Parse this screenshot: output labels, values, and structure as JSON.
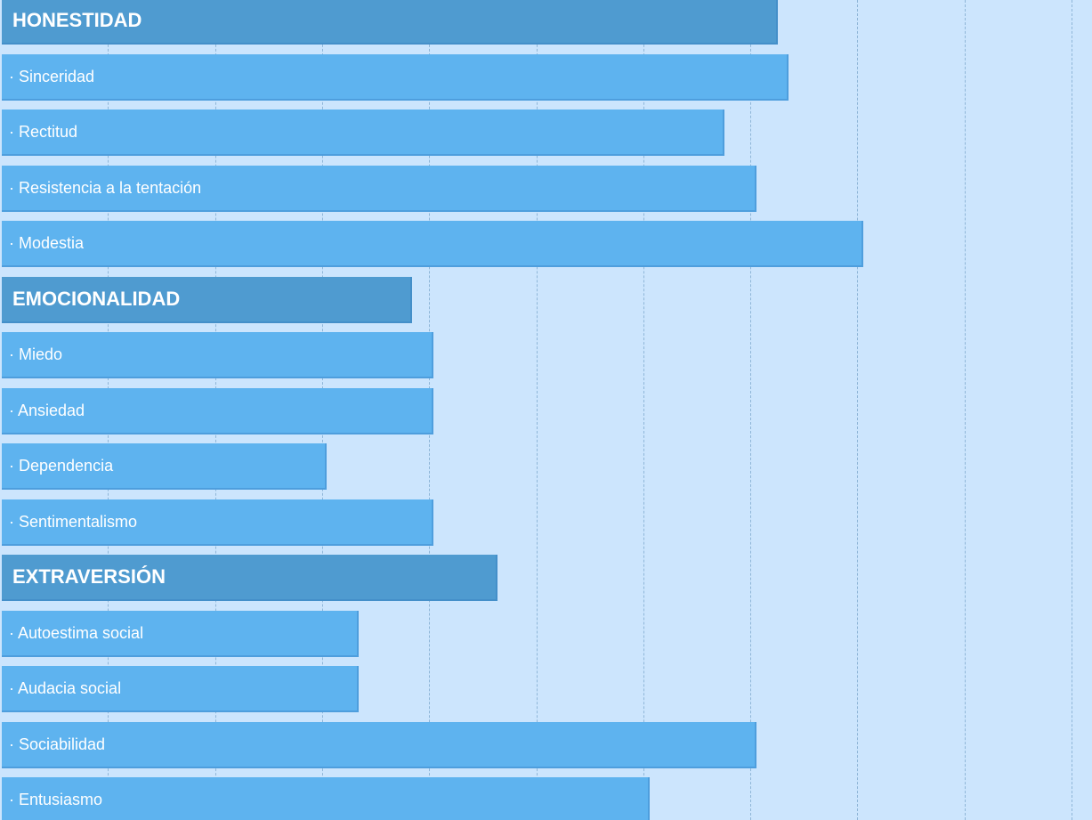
{
  "colors": {
    "background": "#cce5fd",
    "group_bar": "#4f9bd0",
    "item_bar": "#5eb3ef",
    "text": "#ffffff",
    "grid": "#8fb6d8"
  },
  "chart_data": {
    "type": "bar",
    "orientation": "horizontal",
    "grid": "vertical dashed",
    "xlim": [
      0,
      10
    ],
    "categories": [
      "HONESTIDAD",
      "· Sinceridad",
      "· Rectitud",
      "· Resistencia a la tentación",
      "· Modestia",
      "EMOCIONALIDAD",
      "· Miedo",
      "· Ansiedad",
      "· Dependencia",
      "· Sentimentalismo",
      "EXTRAVERSIÓN",
      "· Autoestima social",
      "· Audacia social",
      "· Sociabilidad",
      "· Entusiasmo"
    ],
    "values": [
      7.25,
      7.35,
      6.75,
      7.05,
      8.05,
      3.83,
      4.03,
      4.03,
      3.03,
      4.03,
      4.63,
      3.33,
      3.33,
      7.05,
      6.05
    ],
    "kinds": [
      "group",
      "item",
      "item",
      "item",
      "item",
      "group",
      "item",
      "item",
      "item",
      "item",
      "group",
      "item",
      "item",
      "item",
      "item"
    ]
  }
}
